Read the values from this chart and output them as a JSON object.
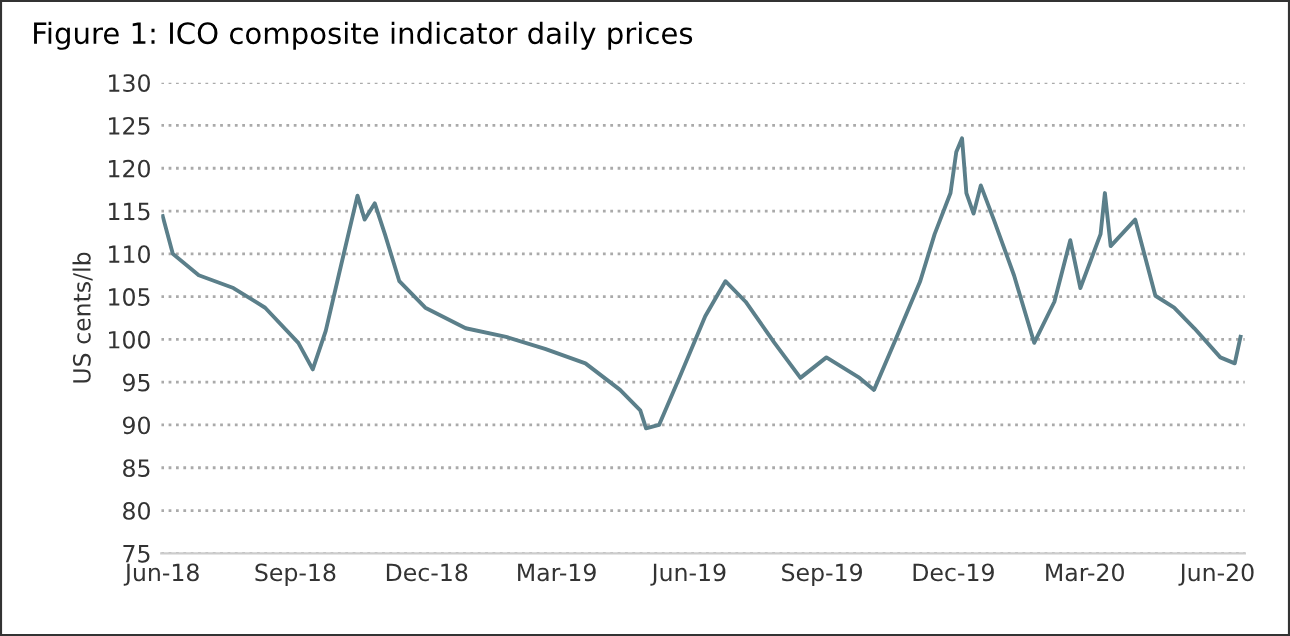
{
  "chart_data": {
    "type": "line",
    "title": "Figure 1: ICO composite indicator daily prices",
    "ylabel": "US cents/lb",
    "x": [
      "2018-06-01",
      "2018-06-08",
      "2018-06-26",
      "2018-07-20",
      "2018-08-11",
      "2018-09-03",
      "2018-09-13",
      "2018-09-22",
      "2018-10-01",
      "2018-10-14",
      "2018-10-19",
      "2018-10-26",
      "2018-11-02",
      "2018-11-12",
      "2018-11-30",
      "2018-12-28",
      "2019-01-25",
      "2019-02-21",
      "2019-03-21",
      "2019-04-14",
      "2019-04-28",
      "2019-05-02",
      "2019-05-11",
      "2019-05-25",
      "2019-06-12",
      "2019-06-26",
      "2019-07-10",
      "2019-07-30",
      "2019-08-17",
      "2019-09-04",
      "2019-09-27",
      "2019-10-07",
      "2019-10-21",
      "2019-11-08",
      "2019-11-18",
      "2019-11-29",
      "2019-12-03",
      "2019-12-07",
      "2019-12-10",
      "2019-12-15",
      "2019-12-20",
      "2019-12-29",
      "2020-01-12",
      "2020-01-26",
      "2020-02-09",
      "2020-02-20",
      "2020-02-27",
      "2020-03-12",
      "2020-03-15",
      "2020-03-19",
      "2020-04-05",
      "2020-04-19",
      "2020-05-02",
      "2020-05-16",
      "2020-06-03",
      "2020-06-13",
      "2020-06-17"
    ],
    "series": [
      {
        "color": "#5b7f8a",
        "values": [
          114.4,
          110,
          107.5,
          106,
          103.7,
          99.6,
          96.5,
          101,
          107.5,
          116.8,
          114,
          115.9,
          112.3,
          106.8,
          103.7,
          101.3,
          100.3,
          98.9,
          97.2,
          94.1,
          91.7,
          89.6,
          90,
          95.5,
          102.7,
          106.8,
          104.4,
          99.6,
          95.5,
          97.9,
          95.5,
          94.1,
          99.6,
          106.8,
          112.3,
          117.1,
          121.9,
          123.5,
          117.1,
          114.7,
          118,
          114,
          107.5,
          99.6,
          104.4,
          111.6,
          106,
          112.3,
          117.1,
          110.9,
          114,
          105.1,
          103.7,
          101.3,
          97.9,
          97.2,
          100.3
        ]
      }
    ],
    "xlim": [
      "2018-05-31",
      "2020-06-20"
    ],
    "xticks": [
      {
        "value": "2018-06-01",
        "label": "Jun-18"
      },
      {
        "value": "2018-09-01",
        "label": "Sep-18"
      },
      {
        "value": "2018-12-01",
        "label": "Dec-18"
      },
      {
        "value": "2019-03-01",
        "label": "Mar-19"
      },
      {
        "value": "2019-06-01",
        "label": "Jun-19"
      },
      {
        "value": "2019-09-01",
        "label": "Sep-19"
      },
      {
        "value": "2019-12-01",
        "label": "Dec-19"
      },
      {
        "value": "2020-03-01",
        "label": "Mar-20"
      },
      {
        "value": "2020-06-01",
        "label": "Jun-20"
      }
    ],
    "ylim": [
      75,
      130
    ],
    "yticks": [
      75,
      80,
      85,
      90,
      95,
      100,
      105,
      110,
      115,
      120,
      125,
      130
    ],
    "grid": "y",
    "legend": false,
    "marker": "none",
    "line_style": "solid"
  }
}
